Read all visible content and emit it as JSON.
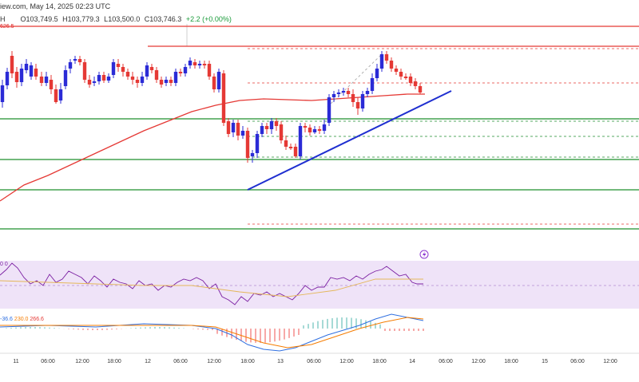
{
  "header": {
    "source_fragment": "iew.com, May 14, 2025 02:23 UTC",
    "ohlc": [
      {
        "key": "O",
        "value": "103,749.5"
      },
      {
        "key": "H",
        "value": "103,779.3"
      },
      {
        "key": "L",
        "value": "103,500.0"
      },
      {
        "key": "C",
        "value": "103,746.3"
      }
    ],
    "change": "+2.2 (+0.00%)",
    "left_label_top": "H",
    "price_badge": "626.5"
  },
  "rsi": {
    "values_text": "0   0"
  },
  "macd": {
    "values": [
      "-36.6",
      "230.0",
      "266.6"
    ]
  },
  "x_axis": {
    "ticks": [
      "11",
      "06:00",
      "12:00",
      "18:00",
      "12",
      "06:00",
      "12:00",
      "18:00",
      "13",
      "06:00",
      "12:00",
      "18:00",
      "14",
      "06:00",
      "12:00",
      "18:00",
      "15",
      "06:00",
      "12:00"
    ]
  },
  "colors": {
    "bull": "#2b2bd6",
    "bear": "#e53935",
    "ma": "#e53935",
    "trend": "#1f2fd0",
    "support": "#1d8f2c",
    "resistance": "#e53935",
    "rsi_line": "#7b1fa2",
    "rsi_band": "#f1e6fa",
    "macd_line": "#2f6fe0",
    "signal_line": "#f57c00"
  },
  "icons": {
    "alert": "lightning-alert-icon"
  }
}
